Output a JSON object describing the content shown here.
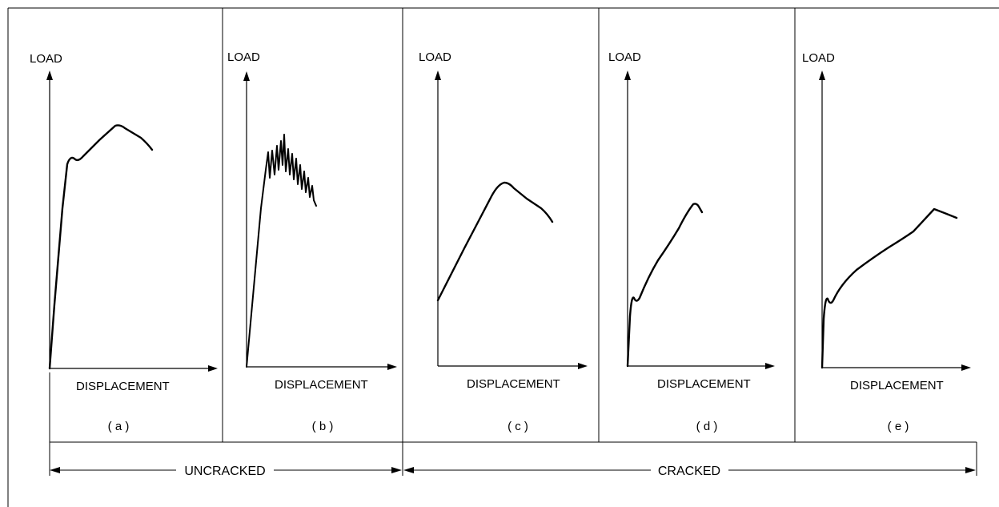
{
  "panels": [
    {
      "id": "a",
      "y_label": "LOAD",
      "x_label": "DISPLACEMENT",
      "caption": "( a )"
    },
    {
      "id": "b",
      "y_label": "LOAD",
      "x_label": "DISPLACEMENT",
      "caption": "( b )"
    },
    {
      "id": "c",
      "y_label": "LOAD",
      "x_label": "DISPLACEMENT",
      "caption": "( c )"
    },
    {
      "id": "d",
      "y_label": "LOAD",
      "x_label": "DISPLACEMENT",
      "caption": "( d )"
    },
    {
      "id": "e",
      "y_label": "LOAD",
      "x_label": "DISPLACEMENT",
      "caption": "( e )"
    }
  ],
  "spans": {
    "uncracked": "UNCRACKED",
    "cracked": "CRACKED"
  }
}
